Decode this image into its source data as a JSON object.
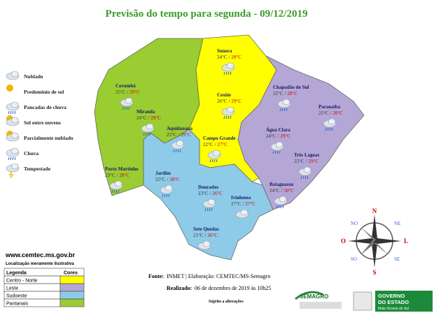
{
  "title": "Previsão do tempo para segunda  - 09/12/2019",
  "separator": "/",
  "legend": [
    "Nublado",
    "Predomínio de sol",
    "Pancadas de chuva",
    "Sol entre nuvens",
    "Parcialmente nublado",
    "Chuva",
    "Tempestade"
  ],
  "cities": [
    {
      "name": "Sonora",
      "min": "24°C",
      "max": "28°C"
    },
    {
      "name": "Corumbá",
      "min": "25°C",
      "max": "29°C"
    },
    {
      "name": "Coxim",
      "min": "26°C",
      "max": "29°C"
    },
    {
      "name": "Chapadão do Sul",
      "min": "22°C",
      "max": "28°C"
    },
    {
      "name": "Paranaíba",
      "min": "25°C",
      "max": "28°C"
    },
    {
      "name": "Miranda",
      "min": "24°C",
      "max": "29°C"
    },
    {
      "name": "Aquidauana",
      "min": "25°C",
      "max": "29°C"
    },
    {
      "name": "Água Clara",
      "min": "24°C",
      "max": "29°C"
    },
    {
      "name": "Campo Grande",
      "min": "22°C",
      "max": "27°C"
    },
    {
      "name": "Três Lagoas",
      "min": "25°C",
      "max": "29°C"
    },
    {
      "name": "Porto Murtinho",
      "min": "23°C",
      "max": "28°C"
    },
    {
      "name": "Jardim",
      "min": "25°C",
      "max": "28°C"
    },
    {
      "name": "Bataguassu",
      "min": "24°C",
      "max": "30°C"
    },
    {
      "name": "Dourados",
      "min": "23°C",
      "max": "26°C"
    },
    {
      "name": "Ivinhema",
      "min": "27°C",
      "max": "27°C"
    },
    {
      "name": "Sete Quedas",
      "min": "21°C",
      "max": "26°C"
    }
  ],
  "website": "www.cemtec.ms.gov.br",
  "note": "Localização meramente ilustrativa",
  "region_table": {
    "headers": [
      "Legenda",
      "Cores"
    ],
    "rows": [
      {
        "name": "Centro - Norte",
        "color": "#ffff00"
      },
      {
        "name": "Leste",
        "color": "#b4a7d6"
      },
      {
        "name": "Sudoeste",
        "color": "#8ecbe8"
      },
      {
        "name": "Pantanais",
        "color": "#9acd32"
      }
    ]
  },
  "compass": {
    "n": "N",
    "ne": "NE",
    "e": "L",
    "se": "SE",
    "s": "S",
    "sw": "SO",
    "w": "O",
    "nw": "NO"
  },
  "footer": {
    "source_label": "Fonte:",
    "source": "INMET | Elaboração: CEMTEC/MS-Semagro",
    "date_label": "Realizado:",
    "date": "06 de dezembro de 2019 às 10h25",
    "disclaimer": "Sujeito a alterações"
  },
  "logos": {
    "semagro": "SEMAGRO",
    "gov1": "GOVERNO",
    "gov2": "DO ESTADO",
    "gov3": "Mato Grosso do Sul"
  }
}
